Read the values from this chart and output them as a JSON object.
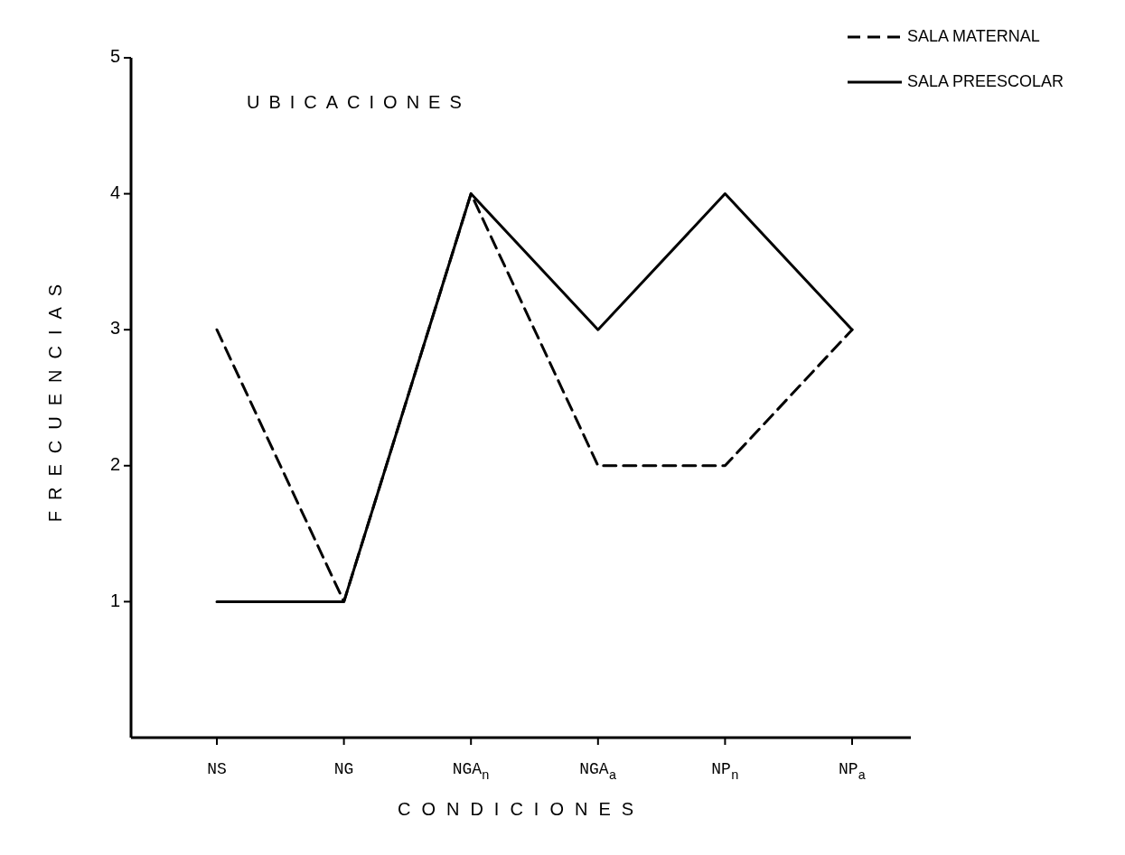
{
  "chart_data": {
    "type": "line",
    "title": "UBICACIONES",
    "xlabel": "CONDICIONES",
    "ylabel": "FRECUENCIAS",
    "categories": [
      "NS",
      "NG",
      "NGA$_{n}$",
      "NGA$_{a}$",
      "NP$_{n}$",
      "NP$_{a}$"
    ],
    "series": [
      {
        "name": "SALA MATERNAL",
        "color": "#000000",
        "line_style": "dashed",
        "values": [
          3,
          1,
          4,
          2,
          2,
          3
        ]
      },
      {
        "name": "SALA PREESCOLAR",
        "color": "#000000",
        "line_style": "solid",
        "values": [
          1,
          1,
          4,
          3,
          4,
          3
        ]
      }
    ],
    "ylim": [
      0,
      5
    ],
    "yticks": [
      1,
      2,
      3,
      4,
      5
    ],
    "grid": false,
    "legend": "top right",
    "marker": "none"
  }
}
